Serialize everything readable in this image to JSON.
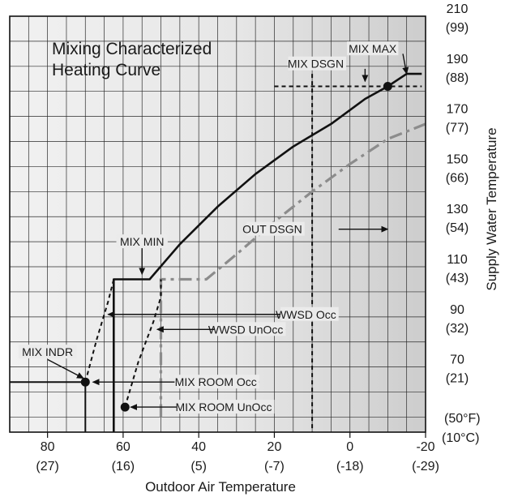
{
  "chart_data": {
    "type": "line",
    "title_lines": [
      "Mixing Characterized",
      "Heating Curve"
    ],
    "xlabel": "Outdoor Air Temperature",
    "ylabel": "Supply Water Temperature",
    "xlim": [
      90,
      -20
    ],
    "ylim": [
      44,
      210
    ],
    "x_reversed": true,
    "grid": true,
    "x_ticks": [
      {
        "value": 80,
        "f": "80",
        "c": "(27)"
      },
      {
        "value": 60,
        "f": "60",
        "c": "(16)"
      },
      {
        "value": 40,
        "f": "40",
        "c": "(5)"
      },
      {
        "value": 20,
        "f": "20",
        "c": "(-7)"
      },
      {
        "value": 0,
        "f": "0",
        "c": "(-18)"
      },
      {
        "value": -20,
        "f": "-20",
        "c": "(-29)"
      }
    ],
    "y_ticks": [
      {
        "value": 210,
        "f": "210",
        "c": "(99)"
      },
      {
        "value": 190,
        "f": "190",
        "c": "(88)"
      },
      {
        "value": 170,
        "f": "170",
        "c": "(77)"
      },
      {
        "value": 150,
        "f": "150",
        "c": "(66)"
      },
      {
        "value": 130,
        "f": "130",
        "c": "(54)"
      },
      {
        "value": 110,
        "f": "110",
        "c": "(43)"
      },
      {
        "value": 90,
        "f": "90",
        "c": "(32)"
      },
      {
        "value": 70,
        "f": "70",
        "c": "(21)"
      }
    ],
    "unit_label_f": "(50°F)",
    "unit_label_c": "(10°C)",
    "series": [
      {
        "style": "solid",
        "color": "#111111",
        "points": [
          [
            62.5,
            44
          ],
          [
            62.5,
            105
          ],
          [
            53,
            105
          ],
          [
            45,
            119
          ],
          [
            35,
            134
          ],
          [
            25,
            147
          ],
          [
            15,
            158
          ],
          [
            5,
            167
          ],
          [
            -4,
            177
          ],
          [
            -10,
            182
          ],
          [
            -15,
            187
          ],
          [
            -19,
            187
          ]
        ]
      },
      {
        "style": "dashdot",
        "color": "#8c8c8c",
        "points": [
          [
            50,
            50
          ],
          [
            50,
            105
          ],
          [
            38,
            105
          ],
          [
            30,
            115
          ],
          [
            20,
            128
          ],
          [
            10,
            140
          ],
          [
            0,
            151
          ],
          [
            -10,
            161
          ],
          [
            -20,
            167
          ]
        ]
      },
      {
        "style": "dashed",
        "color": "#111111",
        "points": [
          [
            70,
            64
          ],
          [
            67,
            81
          ],
          [
            64,
            96
          ],
          [
            62.5,
            105
          ]
        ]
      },
      {
        "style": "dashed",
        "color": "#111111",
        "points": [
          [
            59.5,
            54
          ],
          [
            56,
            72
          ],
          [
            52,
            88
          ],
          [
            50,
            98
          ],
          [
            50,
            105
          ]
        ]
      }
    ],
    "guide_lines": [
      {
        "points": [
          [
            90,
            64
          ],
          [
            70,
            64
          ]
        ],
        "style": "solid"
      },
      {
        "points": [
          [
            70,
            64
          ],
          [
            70,
            44
          ]
        ],
        "style": "solid"
      },
      {
        "points": [
          [
            10,
            187
          ],
          [
            10,
            44
          ]
        ],
        "style": "dashed"
      },
      {
        "points": [
          [
            20,
            182
          ],
          [
            -19,
            182
          ]
        ],
        "style": "dashed"
      }
    ],
    "markers": [
      {
        "x": 70,
        "y": 64
      },
      {
        "x": 59.5,
        "y": 54
      },
      {
        "x": -10,
        "y": 182
      }
    ],
    "annotations": [
      {
        "text": "MIX MAX",
        "tx": -6,
        "ty": 197,
        "anchor": "middle",
        "arrow": [
          [
            -14,
            195
          ],
          [
            -15,
            187
          ]
        ]
      },
      {
        "text": "MIX DSGN",
        "tx": 1,
        "ty": 191,
        "anchor": "end",
        "arrow": [
          [
            -4,
            189
          ],
          [
            -4,
            184
          ]
        ]
      },
      {
        "text": "MIX MIN",
        "tx": 55,
        "ty": 120,
        "anchor": "middle",
        "arrow": [
          [
            55,
            118
          ],
          [
            55,
            107
          ]
        ]
      },
      {
        "text": "OUT DSGN",
        "tx": 12,
        "ty": 125,
        "anchor": "end",
        "arrow": [
          [
            3,
            125
          ],
          [
            -10,
            125
          ]
        ]
      },
      {
        "text": "WWSD Occ",
        "tx": 3,
        "ty": 91,
        "anchor": "end",
        "arrow": [
          [
            10,
            91
          ],
          [
            64,
            91
          ]
        ]
      },
      {
        "text": "WWSD UnOcc",
        "tx": 17,
        "ty": 85,
        "anchor": "end",
        "arrow": [
          [
            17,
            85
          ],
          [
            51,
            85
          ]
        ]
      },
      {
        "text": "MIX ROOM Occ",
        "tx": 24,
        "ty": 64,
        "anchor": "end",
        "arrow": [
          [
            24,
            64
          ],
          [
            68,
            64
          ]
        ]
      },
      {
        "text": "MIX ROOM UnOcc",
        "tx": 20,
        "ty": 54,
        "anchor": "end",
        "arrow": [
          [
            20,
            54
          ],
          [
            58,
            54
          ]
        ]
      },
      {
        "text": "MIX INDR",
        "tx": 80,
        "ty": 76,
        "anchor": "middle",
        "arrow": [
          [
            80,
            73
          ],
          [
            70.5,
            65.5
          ]
        ]
      }
    ]
  }
}
